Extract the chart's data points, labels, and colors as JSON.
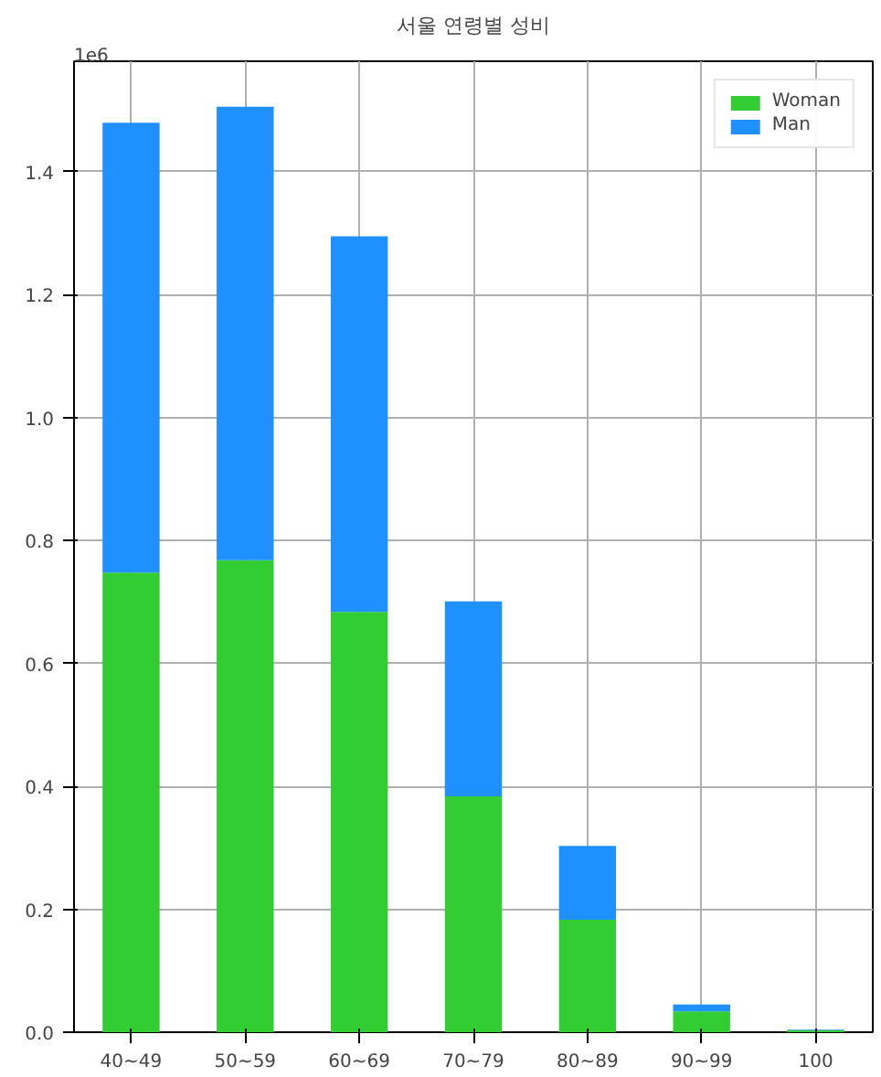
{
  "chart_data": {
    "type": "bar",
    "title": "서울 연령별 성비",
    "stacked": true,
    "categories": [
      "40~49",
      "50~59",
      "60~69",
      "70~79",
      "80~89",
      "90~99",
      "100"
    ],
    "series": [
      {
        "name": "Woman",
        "color": "#32cd32",
        "values": [
          0.748,
          0.768,
          0.684,
          0.384,
          0.183,
          0.034,
          0.003
        ]
      },
      {
        "name": "Man",
        "color": "#1e90ff",
        "values": [
          0.732,
          0.738,
          0.611,
          0.317,
          0.12,
          0.011,
          0.001
        ]
      }
    ],
    "ylim": [
      0,
      1.58
    ],
    "yticks": [
      {
        "value": 0,
        "label": "0.0"
      },
      0.2,
      0.4,
      0.6,
      0.8,
      {
        "value": 1,
        "label": "1.0"
      },
      1.2,
      1.4
    ],
    "annotations": [
      "1e6"
    ],
    "grid": true,
    "legend": "top right"
  }
}
